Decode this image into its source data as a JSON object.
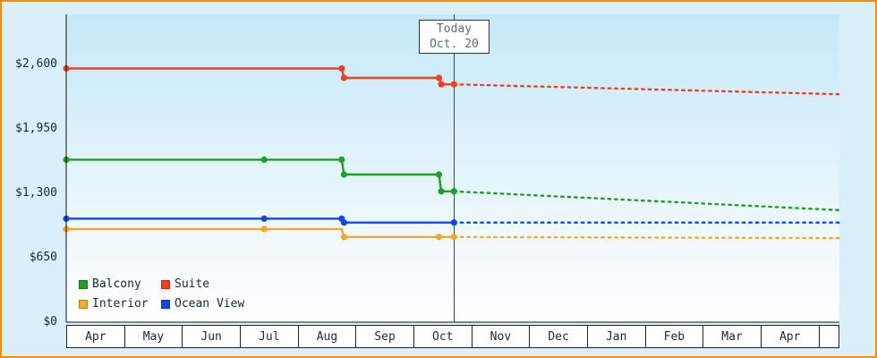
{
  "palette": {
    "page_bg": "#d9f0fa",
    "plot_top": "#c5e8f8",
    "plot_bottom": "#ffffff",
    "frame_border": "#ff8a00",
    "axis": "#111111",
    "today_line": "#444444",
    "grid_box_border": "#222222",
    "label_text": "#16283c",
    "today_text": "#5a6b7c",
    "cell_bg": "#ffffff"
  },
  "chart_data": {
    "type": "line",
    "title": "",
    "legend_position": "bottom-left",
    "grid": false,
    "x_axis": {
      "months": [
        "Apr",
        "May",
        "Jun",
        "Jul",
        "Aug",
        "Sep",
        "Oct",
        "Nov",
        "Dec",
        "Jan",
        "Feb",
        "Mar",
        "Apr"
      ]
    },
    "y_axis": {
      "ticks": [
        0,
        650,
        1300,
        1950,
        2600
      ],
      "tick_labels": [
        "$0",
        "$650",
        "$1,300",
        "$1,950",
        "$2,600"
      ]
    },
    "xlim": [
      0,
      13.36
    ],
    "ylim": [
      0,
      3106
    ],
    "today": {
      "x": 6.7,
      "label_line1": "Today",
      "label_line2": "Oct. 20"
    },
    "series": [
      {
        "name": "Balcony",
        "color": "#1fa01f",
        "solid_points": [
          [
            0,
            1640
          ],
          [
            3.42,
            1640
          ],
          [
            4.76,
            1640
          ],
          [
            4.8,
            1490
          ],
          [
            6.44,
            1490
          ],
          [
            6.48,
            1320
          ],
          [
            6.7,
            1320
          ]
        ],
        "dotted_points": [
          [
            6.7,
            1320
          ],
          [
            13.36,
            1130
          ]
        ],
        "markers": [
          [
            0,
            1640
          ],
          [
            3.42,
            1640
          ],
          [
            4.76,
            1640
          ],
          [
            4.8,
            1490
          ],
          [
            6.44,
            1490
          ],
          [
            6.48,
            1320
          ],
          [
            6.7,
            1320
          ]
        ]
      },
      {
        "name": "Suite",
        "color": "#fa3c1e",
        "solid_points": [
          [
            0,
            2560
          ],
          [
            4.76,
            2560
          ],
          [
            4.8,
            2465
          ],
          [
            6.44,
            2465
          ],
          [
            6.48,
            2400
          ],
          [
            6.7,
            2400
          ]
        ],
        "dotted_points": [
          [
            6.7,
            2400
          ],
          [
            13.36,
            2300
          ]
        ],
        "markers": [
          [
            0,
            2560
          ],
          [
            4.76,
            2560
          ],
          [
            4.8,
            2465
          ],
          [
            6.44,
            2465
          ],
          [
            6.48,
            2400
          ],
          [
            6.7,
            2400
          ]
        ]
      },
      {
        "name": "Interior",
        "color": "#f7a823",
        "solid_points": [
          [
            0,
            940
          ],
          [
            3.42,
            940
          ],
          [
            4.76,
            940
          ],
          [
            4.8,
            860
          ],
          [
            6.44,
            860
          ],
          [
            6.7,
            860
          ]
        ],
        "dotted_points": [
          [
            6.7,
            860
          ],
          [
            13.36,
            848
          ]
        ],
        "markers": [
          [
            0,
            940
          ],
          [
            3.42,
            940
          ],
          [
            4.8,
            860
          ],
          [
            6.44,
            860
          ],
          [
            6.7,
            860
          ]
        ]
      },
      {
        "name": "Ocean View",
        "color": "#1048e8",
        "solid_points": [
          [
            0,
            1045
          ],
          [
            3.42,
            1045
          ],
          [
            4.76,
            1045
          ],
          [
            4.8,
            1005
          ],
          [
            6.7,
            1005
          ]
        ],
        "dotted_points": [
          [
            6.7,
            1005
          ],
          [
            13.36,
            1005
          ]
        ],
        "markers": [
          [
            0,
            1045
          ],
          [
            3.42,
            1045
          ],
          [
            4.76,
            1045
          ],
          [
            4.8,
            1005
          ],
          [
            6.7,
            1005
          ]
        ]
      }
    ]
  }
}
